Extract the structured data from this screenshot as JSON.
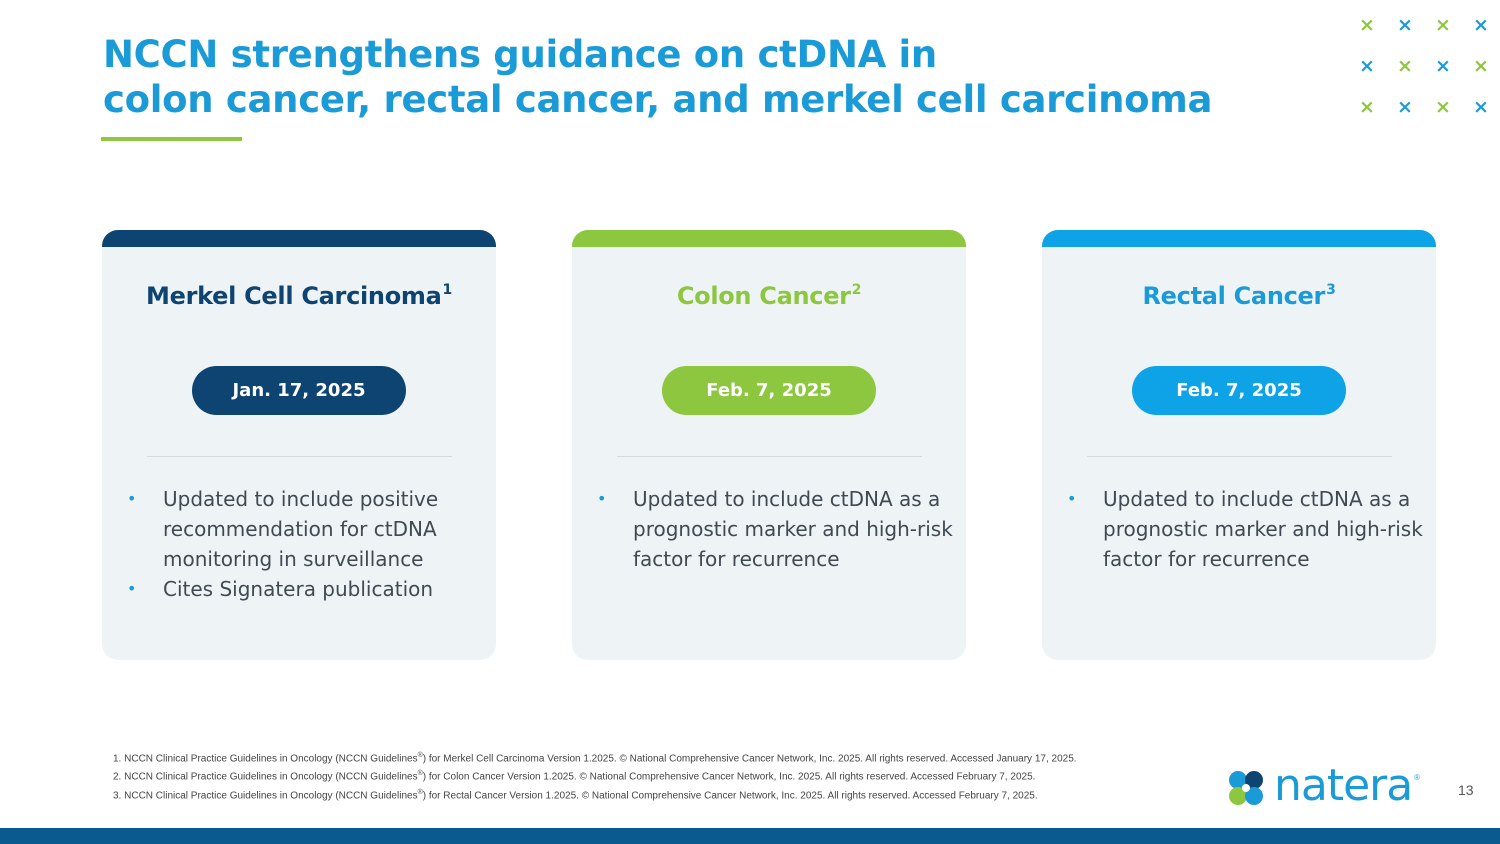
{
  "title": {
    "line1": "NCCN strengthens guidance on ctDNA in",
    "line2": "colon cancer, rectal cancer, and merkel cell carcinoma"
  },
  "colors": {
    "title": "#1a9bd7",
    "navy": "#0e4471",
    "green": "#8dc63f",
    "blue": "#1a9bd7",
    "card_bg": "#eef3f6",
    "bottom_band": "#0a5a8f"
  },
  "cards": [
    {
      "title": "Merkel Cell Carcinoma",
      "ref": "1",
      "date": "Jan. 17, 2025",
      "bullets": [
        "Updated to include positive recommendation for ctDNA monitoring in surveillance",
        "Cites Signatera publication"
      ]
    },
    {
      "title": "Colon Cancer",
      "ref": "2",
      "date": "Feb. 7, 2025",
      "bullets": [
        "Updated to include ctDNA as a prognostic marker and high-risk factor for recurrence"
      ]
    },
    {
      "title": "Rectal Cancer",
      "ref": "3",
      "date": "Feb. 7, 2025",
      "bullets": [
        "Updated to include ctDNA as a prognostic marker and high-risk factor for recurrence"
      ]
    }
  ],
  "footnotes": [
    {
      "num": "1.",
      "pre": "NCCN Clinical Practice Guidelines in Oncology (NCCN Guidelines",
      "sup": "®",
      "post": ") for Merkel Cell Carcinoma Version 1.2025. © National Comprehensive Cancer Network, Inc. 2025. All rights reserved. Accessed January 17, 2025."
    },
    {
      "num": "2.",
      "pre": "NCCN Clinical Practice Guidelines in Oncology (NCCN Guidelines",
      "sup": "®",
      "post": ") for Colon Cancer Version 1.2025. © National Comprehensive Cancer Network, Inc. 2025. All rights reserved. Accessed February 7, 2025."
    },
    {
      "num": "3.",
      "pre": "NCCN Clinical Practice Guidelines in Oncology (NCCN Guidelines",
      "sup": "®",
      "post": ") for Rectal Cancer Version 1.2025. © National Comprehensive Cancer Network, Inc. 2025. All rights reserved. Accessed February 7, 2025."
    }
  ],
  "logo": {
    "text": "natera",
    "reg": "®"
  },
  "page_number": "13",
  "decor_marks": {
    "glyph": "×",
    "icon": "x-mark-icon",
    "colors": [
      "#8dc63f",
      "#1a9bd7",
      "#8dc63f",
      "#1a9bd7",
      "#1a9bd7",
      "#8dc63f",
      "#1a9bd7",
      "#8dc63f",
      "#8dc63f",
      "#1a9bd7",
      "#8dc63f",
      "#1a9bd7"
    ]
  }
}
